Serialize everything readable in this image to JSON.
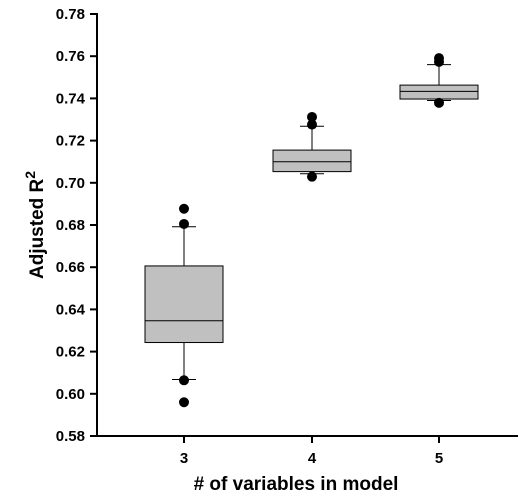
{
  "chart_data": {
    "type": "box",
    "xlabel": "# of variables in model",
    "ylabel": "Adjusted R",
    "ylabel_superscript": "2",
    "ylim": [
      0.58,
      0.78
    ],
    "y_ticks": [
      "0.58",
      "0.60",
      "0.62",
      "0.64",
      "0.66",
      "0.68",
      "0.70",
      "0.72",
      "0.74",
      "0.76",
      "0.78"
    ],
    "grid": false,
    "categories": [
      "3",
      "4",
      "5"
    ],
    "boxes": [
      {
        "category": "3",
        "whisker_low": 0.6068,
        "q1": 0.6243,
        "median": 0.6346,
        "q3": 0.6606,
        "whisker_high": 0.6792,
        "outliers": [
          0.596,
          0.6064,
          0.6805,
          0.6877
        ]
      },
      {
        "category": "4",
        "whisker_low": 0.7043,
        "q1": 0.7053,
        "median": 0.71,
        "q3": 0.7155,
        "whisker_high": 0.7268,
        "outliers": [
          0.7029,
          0.7276,
          0.7312
        ]
      },
      {
        "category": "5",
        "whisker_low": 0.739,
        "q1": 0.7397,
        "median": 0.7433,
        "q3": 0.7463,
        "whisker_high": 0.756,
        "outliers": [
          0.7379,
          0.7573,
          0.7591
        ]
      }
    ],
    "box_fill": "#c0c0c0",
    "box_stroke": "#000000"
  }
}
